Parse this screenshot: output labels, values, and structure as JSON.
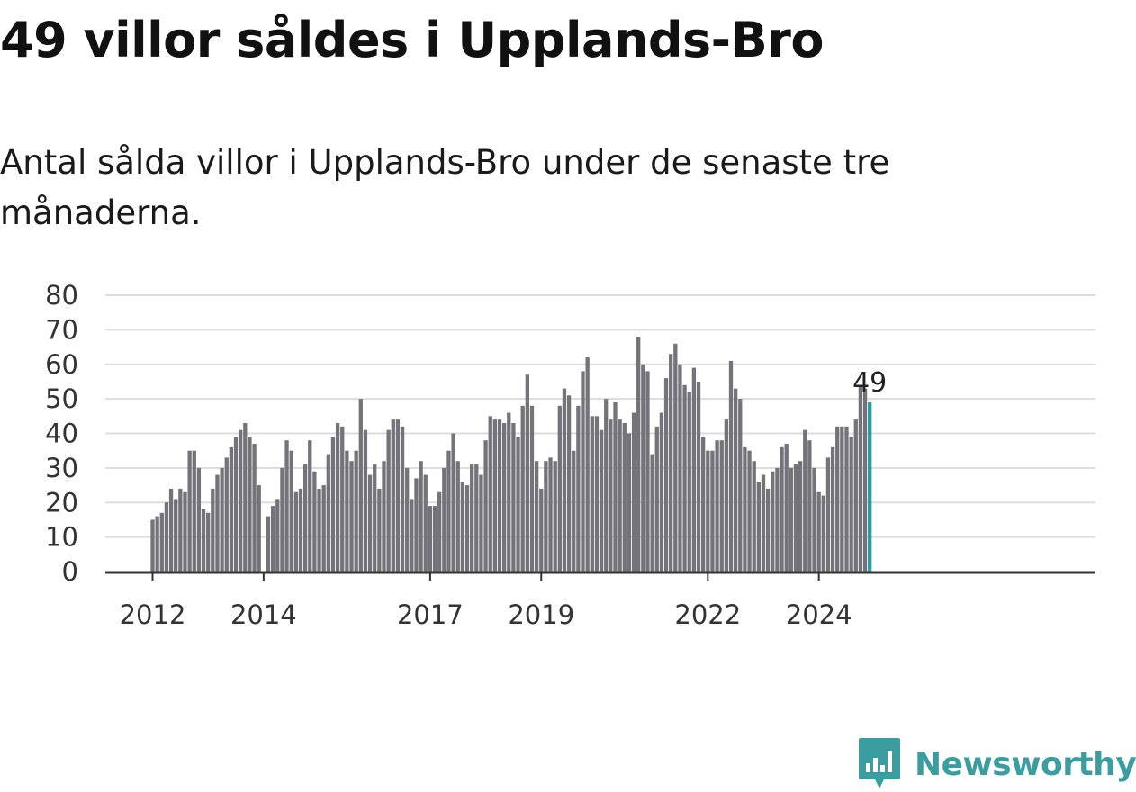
{
  "header": {
    "title": "49 villor såldes i Upplands-Bro",
    "subtitle": "Antal sålda villor i Upplands-Bro under de senaste tre månaderna."
  },
  "brand": {
    "name": "Newsworthy",
    "icon": "newsworthy-logo-icon",
    "color": "#3a9ea0"
  },
  "colors": {
    "bar": "#75737a",
    "highlight": "#2a9d9f",
    "grid": "#dddddd",
    "axis": "#333333"
  },
  "chart_data": {
    "type": "bar",
    "title": "",
    "xlabel": "",
    "ylabel": "",
    "ylim": [
      0,
      80
    ],
    "yticks": [
      0,
      10,
      20,
      30,
      40,
      50,
      60,
      70,
      80
    ],
    "grid": true,
    "legend": "none",
    "x_start": "2012-01",
    "x_end": "2024-12",
    "x_ticks": [
      "2012",
      "2014",
      "2017",
      "2019",
      "2022",
      "2024"
    ],
    "x_tick_months": [
      "2012-01",
      "2014-01",
      "2017-01",
      "2019-01",
      "2022-01",
      "2024-01"
    ],
    "first_month": "2012-01",
    "values": [
      15,
      16,
      17,
      20,
      24,
      21,
      24,
      23,
      35,
      35,
      30,
      18,
      17,
      24,
      28,
      30,
      33,
      36,
      39,
      41,
      43,
      39,
      37,
      25,
      null,
      16,
      19,
      21,
      30,
      38,
      35,
      23,
      24,
      31,
      38,
      29,
      24,
      25,
      34,
      39,
      43,
      42,
      35,
      32,
      35,
      50,
      41,
      28,
      31,
      24,
      32,
      41,
      44,
      44,
      42,
      30,
      21,
      27,
      32,
      28,
      19,
      19,
      23,
      30,
      35,
      40,
      32,
      26,
      25,
      31,
      31,
      28,
      38,
      45,
      44,
      44,
      43,
      46,
      43,
      39,
      48,
      57,
      48,
      32,
      24,
      32,
      33,
      32,
      48,
      53,
      51,
      35,
      48,
      58,
      62,
      45,
      45,
      41,
      50,
      44,
      49,
      44,
      43,
      40,
      46,
      68,
      60,
      58,
      34,
      42,
      46,
      56,
      63,
      66,
      60,
      54,
      52,
      59,
      55,
      39,
      35,
      35,
      38,
      38,
      44,
      61,
      53,
      50,
      36,
      35,
      32,
      26,
      28,
      24,
      29,
      30,
      36,
      37,
      30,
      31,
      32,
      41,
      38,
      30,
      23,
      22,
      33,
      36,
      42,
      42,
      42,
      39,
      44,
      54,
      53,
      49
    ],
    "highlight_index": 155,
    "last_value_label": "49"
  }
}
